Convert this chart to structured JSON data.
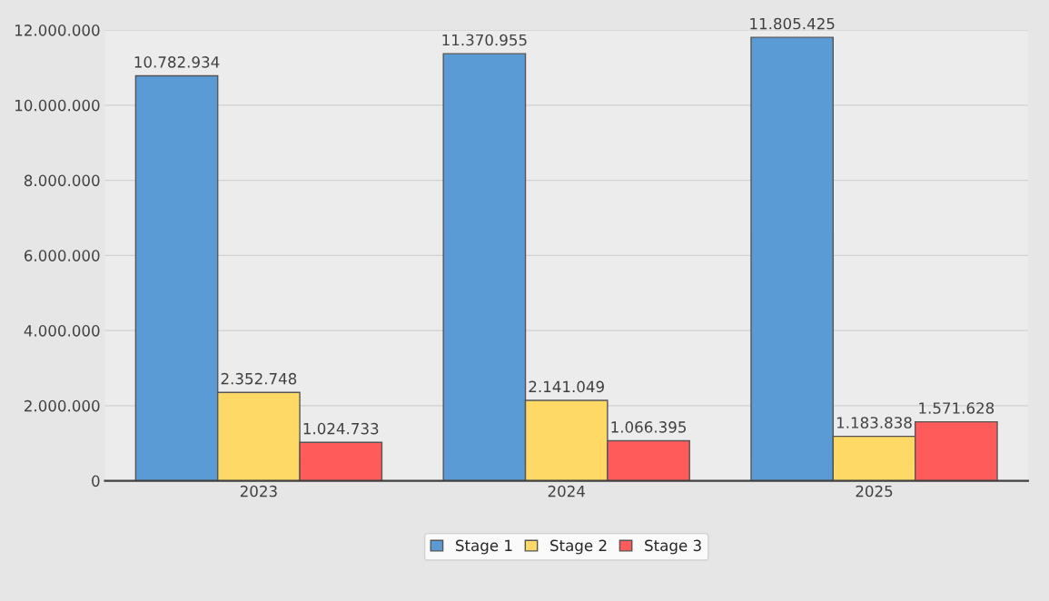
{
  "chart_data": {
    "type": "bar",
    "categories": [
      "2023",
      "2024",
      "2025"
    ],
    "series": [
      {
        "name": "Stage 1",
        "color": "#5b9bd5",
        "values": [
          10782934,
          11370955,
          11805425
        ],
        "value_labels": [
          "10.782.934",
          "11.370.955",
          "11.805.425"
        ]
      },
      {
        "name": "Stage 2",
        "color": "#ffd966",
        "values": [
          2352748,
          2141049,
          1183838
        ],
        "value_labels": [
          "2.352.748",
          "2.141.049",
          "1.183.838"
        ]
      },
      {
        "name": "Stage 3",
        "color": "#ff5b5b",
        "values": [
          1024733,
          1066395,
          1571628
        ],
        "value_labels": [
          "1.024.733",
          "1.066.395",
          "1.571.628"
        ]
      }
    ],
    "ylim": [
      0,
      12000000
    ],
    "yticks": [
      {
        "value": 0,
        "label": "0"
      },
      {
        "value": 2000000,
        "label": "2.000.000"
      },
      {
        "value": 4000000,
        "label": "4.000.000"
      },
      {
        "value": 6000000,
        "label": "6.000.000"
      },
      {
        "value": 8000000,
        "label": "8.000.000"
      },
      {
        "value": 10000000,
        "label": "10.000.000"
      },
      {
        "value": 12000000,
        "label": "12.000.000"
      }
    ],
    "grid": "y",
    "legend": "bottom"
  }
}
